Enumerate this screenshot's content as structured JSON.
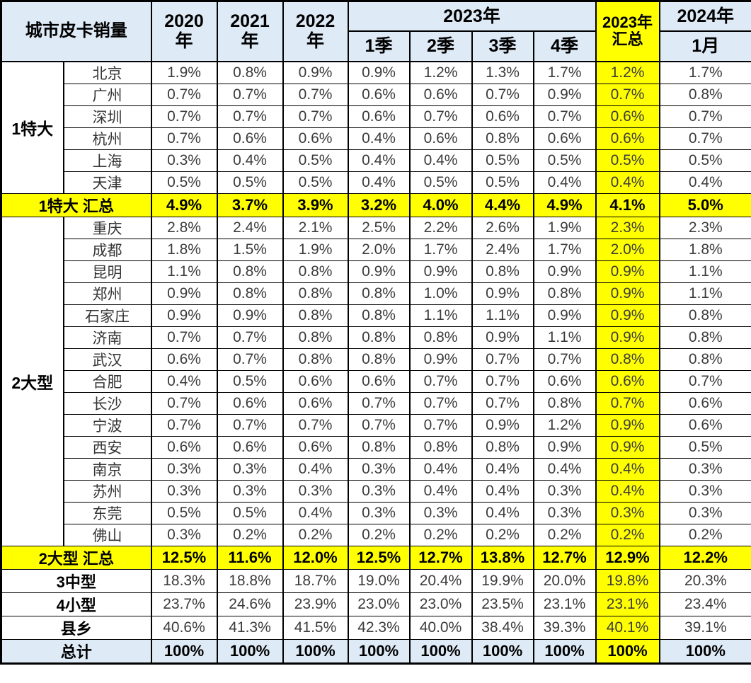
{
  "title": "城市皮卡销量",
  "colors": {
    "highlight_yellow": "#FFFF00",
    "band_blue": "#DEEAF6",
    "border_black": "#000000",
    "value_text": "#3B3B3B"
  },
  "header": {
    "title": "城市皮卡销量",
    "y2020": [
      "2020",
      "年"
    ],
    "y2021": [
      "2021",
      "年"
    ],
    "y2022": [
      "2022",
      "年"
    ],
    "span2023": "2023年",
    "quarters": [
      "1季",
      "2季",
      "3季",
      "4季"
    ],
    "sum2023": [
      "2023年",
      "汇总"
    ],
    "col2024_top": "2024年",
    "col2024_bottom": "1月"
  },
  "chart_data": {
    "type": "table",
    "title": "城市皮卡销量",
    "columns": [
      "2020年",
      "2021年",
      "2022年",
      "2023年1季",
      "2023年2季",
      "2023年3季",
      "2023年4季",
      "2023年汇总",
      "2024年1月"
    ],
    "highlight_column": "2023年汇总",
    "highlight_column_index": 7,
    "row_groups": [
      {
        "kind": "group",
        "label": "1特大",
        "rows": [
          {
            "name": "北京",
            "values": [
              "1.9%",
              "0.8%",
              "0.9%",
              "0.9%",
              "1.2%",
              "1.3%",
              "1.7%",
              "1.2%",
              "1.7%"
            ]
          },
          {
            "name": "广州",
            "values": [
              "0.7%",
              "0.7%",
              "0.7%",
              "0.6%",
              "0.6%",
              "0.7%",
              "0.9%",
              "0.7%",
              "0.8%"
            ]
          },
          {
            "name": "深圳",
            "values": [
              "0.7%",
              "0.7%",
              "0.7%",
              "0.6%",
              "0.7%",
              "0.6%",
              "0.7%",
              "0.6%",
              "0.7%"
            ]
          },
          {
            "name": "杭州",
            "values": [
              "0.7%",
              "0.6%",
              "0.6%",
              "0.4%",
              "0.6%",
              "0.8%",
              "0.6%",
              "0.6%",
              "0.7%"
            ]
          },
          {
            "name": "上海",
            "values": [
              "0.3%",
              "0.4%",
              "0.5%",
              "0.4%",
              "0.4%",
              "0.5%",
              "0.5%",
              "0.5%",
              "0.5%"
            ]
          },
          {
            "name": "天津",
            "values": [
              "0.5%",
              "0.5%",
              "0.5%",
              "0.4%",
              "0.5%",
              "0.5%",
              "0.4%",
              "0.4%",
              "0.4%"
            ]
          }
        ]
      },
      {
        "kind": "summary",
        "label": "1特大 汇总",
        "values": [
          "4.9%",
          "3.7%",
          "3.9%",
          "3.2%",
          "4.0%",
          "4.4%",
          "4.9%",
          "4.1%",
          "5.0%"
        ]
      },
      {
        "kind": "group",
        "label": "2大型",
        "rows": [
          {
            "name": "重庆",
            "values": [
              "2.8%",
              "2.4%",
              "2.1%",
              "2.5%",
              "2.2%",
              "2.6%",
              "1.9%",
              "2.3%",
              "2.3%"
            ]
          },
          {
            "name": "成都",
            "values": [
              "1.8%",
              "1.5%",
              "1.9%",
              "2.0%",
              "1.7%",
              "2.4%",
              "1.7%",
              "2.0%",
              "1.8%"
            ]
          },
          {
            "name": "昆明",
            "values": [
              "1.1%",
              "0.8%",
              "0.8%",
              "0.9%",
              "0.9%",
              "0.8%",
              "0.9%",
              "0.9%",
              "1.1%"
            ]
          },
          {
            "name": "郑州",
            "values": [
              "0.9%",
              "0.8%",
              "0.8%",
              "0.8%",
              "1.0%",
              "0.9%",
              "0.8%",
              "0.9%",
              "1.1%"
            ]
          },
          {
            "name": "石家庄",
            "values": [
              "0.9%",
              "0.9%",
              "0.8%",
              "0.8%",
              "1.1%",
              "1.1%",
              "0.9%",
              "0.9%",
              "0.8%"
            ]
          },
          {
            "name": "济南",
            "values": [
              "0.7%",
              "0.7%",
              "0.8%",
              "0.8%",
              "0.8%",
              "0.9%",
              "1.1%",
              "0.9%",
              "0.8%"
            ]
          },
          {
            "name": "武汉",
            "values": [
              "0.6%",
              "0.7%",
              "0.8%",
              "0.8%",
              "0.9%",
              "0.7%",
              "0.7%",
              "0.8%",
              "0.8%"
            ]
          },
          {
            "name": "合肥",
            "values": [
              "0.4%",
              "0.5%",
              "0.6%",
              "0.6%",
              "0.7%",
              "0.7%",
              "0.6%",
              "0.6%",
              "0.7%"
            ]
          },
          {
            "name": "长沙",
            "values": [
              "0.7%",
              "0.6%",
              "0.6%",
              "0.7%",
              "0.7%",
              "0.7%",
              "0.8%",
              "0.7%",
              "0.6%"
            ]
          },
          {
            "name": "宁波",
            "values": [
              "0.7%",
              "0.7%",
              "0.7%",
              "0.7%",
              "0.7%",
              "0.9%",
              "1.2%",
              "0.9%",
              "0.6%"
            ]
          },
          {
            "name": "西安",
            "values": [
              "0.6%",
              "0.6%",
              "0.6%",
              "0.8%",
              "0.8%",
              "0.8%",
              "0.9%",
              "0.9%",
              "0.5%"
            ]
          },
          {
            "name": "南京",
            "values": [
              "0.3%",
              "0.3%",
              "0.4%",
              "0.3%",
              "0.4%",
              "0.4%",
              "0.4%",
              "0.4%",
              "0.3%"
            ]
          },
          {
            "name": "苏州",
            "values": [
              "0.3%",
              "0.3%",
              "0.3%",
              "0.3%",
              "0.4%",
              "0.4%",
              "0.3%",
              "0.4%",
              "0.3%"
            ]
          },
          {
            "name": "东莞",
            "values": [
              "0.5%",
              "0.5%",
              "0.4%",
              "0.3%",
              "0.3%",
              "0.4%",
              "0.3%",
              "0.3%",
              "0.3%"
            ]
          },
          {
            "name": "佛山",
            "values": [
              "0.3%",
              "0.2%",
              "0.2%",
              "0.2%",
              "0.2%",
              "0.2%",
              "0.2%",
              "0.2%",
              "0.2%"
            ]
          }
        ]
      },
      {
        "kind": "summary",
        "label": "2大型 汇总",
        "values": [
          "12.5%",
          "11.6%",
          "12.0%",
          "12.5%",
          "12.7%",
          "13.8%",
          "12.7%",
          "12.9%",
          "12.2%"
        ]
      },
      {
        "kind": "category",
        "label": "3中型",
        "values": [
          "18.3%",
          "18.8%",
          "18.7%",
          "19.0%",
          "20.4%",
          "19.9%",
          "20.0%",
          "19.8%",
          "20.3%"
        ]
      },
      {
        "kind": "category",
        "label": "4小型",
        "values": [
          "23.7%",
          "24.6%",
          "23.9%",
          "23.0%",
          "23.0%",
          "23.5%",
          "23.1%",
          "23.1%",
          "23.4%"
        ]
      },
      {
        "kind": "category",
        "label": "县乡",
        "values": [
          "40.6%",
          "41.3%",
          "41.5%",
          "42.3%",
          "40.0%",
          "38.4%",
          "39.3%",
          "40.1%",
          "39.1%"
        ]
      },
      {
        "kind": "total",
        "label": "总计",
        "values": [
          "100%",
          "100%",
          "100%",
          "100%",
          "100%",
          "100%",
          "100%",
          "100%",
          "100%"
        ]
      }
    ]
  }
}
